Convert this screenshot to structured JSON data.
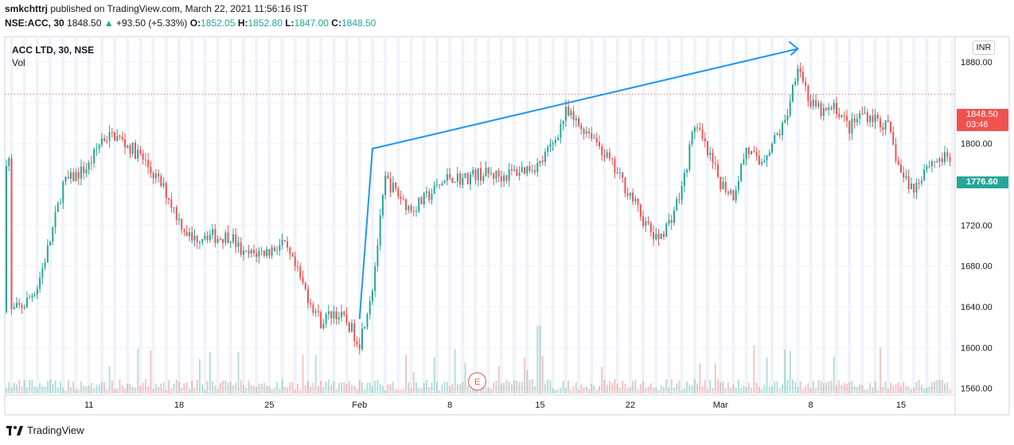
{
  "header": {
    "author": "smkchttrj",
    "published_text": "published on TradingView.com, March 22, 2021 11:56:16 IST",
    "symbol": "NSE:ACC, 30",
    "price": "1848.50",
    "change_arrow": "▲",
    "change": "+93.50 (+5.33%)",
    "open_label": "O:",
    "open": "1852.05",
    "high_label": "H:",
    "high": "1852.80",
    "low_label": "L:",
    "low": "1847.00",
    "close_label": "C:",
    "close": "1848.50"
  },
  "legend": {
    "title": "ACC LTD, 30, NSE",
    "volume": "Vol"
  },
  "currency": "INR",
  "price_tags": {
    "last_price": "1848.50",
    "countdown": "03:46",
    "marker": "1776.60"
  },
  "earnings_marker": "E",
  "footer": {
    "brand": "TradingView"
  },
  "colors": {
    "up": "#26a69a",
    "down": "#ef5350",
    "drawing": "#2196f3",
    "grid": "#f0f3fa"
  },
  "chart_data": {
    "type": "candlestick",
    "title": "ACC LTD, 30, NSE",
    "ylim": [
      1555,
      1905
    ],
    "y_ticks": [
      1560,
      1600,
      1640,
      1680,
      1720,
      1760,
      1800,
      1840,
      1880
    ],
    "y_tick_labels": [
      "1560.00",
      "1600.00",
      "1640.00",
      "1680.00",
      "1720.00",
      "1760.00",
      "1800.00",
      "",
      "1880.00"
    ],
    "x_tick_labels": [
      "11",
      "18",
      "25",
      "Feb",
      "8",
      "15",
      "22",
      "Mar",
      "8",
      "15"
    ],
    "last_price": 1848.5,
    "marker_price": 1776.6,
    "price_path": [
      {
        "x": "Jan 5",
        "price": 1635
      },
      {
        "x": "Jan 6",
        "price": 1642
      },
      {
        "x": "Jan 7",
        "price": 1660
      },
      {
        "x": "Jan 8",
        "price": 1705
      },
      {
        "x": "Jan 9",
        "price": 1760
      },
      {
        "x": "Jan 11",
        "price": 1778
      },
      {
        "x": "Jan 12",
        "price": 1805
      },
      {
        "x": "Jan 13",
        "price": 1808
      },
      {
        "x": "Jan 14",
        "price": 1798
      },
      {
        "x": "Jan 15",
        "price": 1788
      },
      {
        "x": "Jan 17",
        "price": 1752
      },
      {
        "x": "Jan 18",
        "price": 1725
      },
      {
        "x": "Jan 19",
        "price": 1705
      },
      {
        "x": "Jan 20",
        "price": 1712
      },
      {
        "x": "Jan 21",
        "price": 1708
      },
      {
        "x": "Jan 22",
        "price": 1710
      },
      {
        "x": "Jan 23",
        "price": 1690
      },
      {
        "x": "Jan 25",
        "price": 1695
      },
      {
        "x": "Jan 26",
        "price": 1702
      },
      {
        "x": "Jan 27",
        "price": 1678
      },
      {
        "x": "Jan 28",
        "price": 1650
      },
      {
        "x": "Jan 29",
        "price": 1625
      },
      {
        "x": "Jan 30",
        "price": 1635
      },
      {
        "x": "Jan 31",
        "price": 1625
      },
      {
        "x": "Feb 1",
        "price": 1605
      },
      {
        "x": "Feb 2",
        "price": 1660
      },
      {
        "x": "Feb 3",
        "price": 1765
      },
      {
        "x": "Feb 4",
        "price": 1750
      },
      {
        "x": "Feb 5",
        "price": 1735
      },
      {
        "x": "Feb 6",
        "price": 1745
      },
      {
        "x": "Feb 8",
        "price": 1768
      },
      {
        "x": "Feb 9",
        "price": 1765
      },
      {
        "x": "Feb 10",
        "price": 1770
      },
      {
        "x": "Feb 11",
        "price": 1770
      },
      {
        "x": "Feb 12",
        "price": 1768
      },
      {
        "x": "Feb 13",
        "price": 1772
      },
      {
        "x": "Feb 15",
        "price": 1780
      },
      {
        "x": "Feb 16",
        "price": 1800
      },
      {
        "x": "Feb 17",
        "price": 1830
      },
      {
        "x": "Feb 18",
        "price": 1818
      },
      {
        "x": "Feb 19",
        "price": 1810
      },
      {
        "x": "Feb 20",
        "price": 1790
      },
      {
        "x": "Feb 21",
        "price": 1770
      },
      {
        "x": "Feb 22",
        "price": 1750
      },
      {
        "x": "Feb 23",
        "price": 1725
      },
      {
        "x": "Feb 24",
        "price": 1705
      },
      {
        "x": "Feb 25",
        "price": 1722
      },
      {
        "x": "Feb 26",
        "price": 1755
      },
      {
        "x": "Feb 27",
        "price": 1820
      },
      {
        "x": "Feb 28",
        "price": 1790
      },
      {
        "x": "Mar 1",
        "price": 1762
      },
      {
        "x": "Mar 2",
        "price": 1750
      },
      {
        "x": "Mar 3",
        "price": 1795
      },
      {
        "x": "Mar 4",
        "price": 1780
      },
      {
        "x": "Mar 5",
        "price": 1800
      },
      {
        "x": "Mar 6",
        "price": 1820
      },
      {
        "x": "Mar 7",
        "price": 1880
      },
      {
        "x": "Mar 8",
        "price": 1838
      },
      {
        "x": "Mar 9",
        "price": 1830
      },
      {
        "x": "Mar 10",
        "price": 1835
      },
      {
        "x": "Mar 11",
        "price": 1815
      },
      {
        "x": "Mar 12",
        "price": 1830
      },
      {
        "x": "Mar 13",
        "price": 1825
      },
      {
        "x": "Mar 14",
        "price": 1815
      },
      {
        "x": "Mar 15",
        "price": 1770
      },
      {
        "x": "Mar 16",
        "price": 1755
      },
      {
        "x": "Mar 17",
        "price": 1780
      },
      {
        "x": "Mar 18",
        "price": 1785
      }
    ],
    "drawing_trendline": [
      {
        "x": "Feb 1",
        "price": 1628
      },
      {
        "x": "Feb 2",
        "price": 1795
      },
      {
        "x": "Mar 7",
        "price": 1893
      }
    ]
  }
}
